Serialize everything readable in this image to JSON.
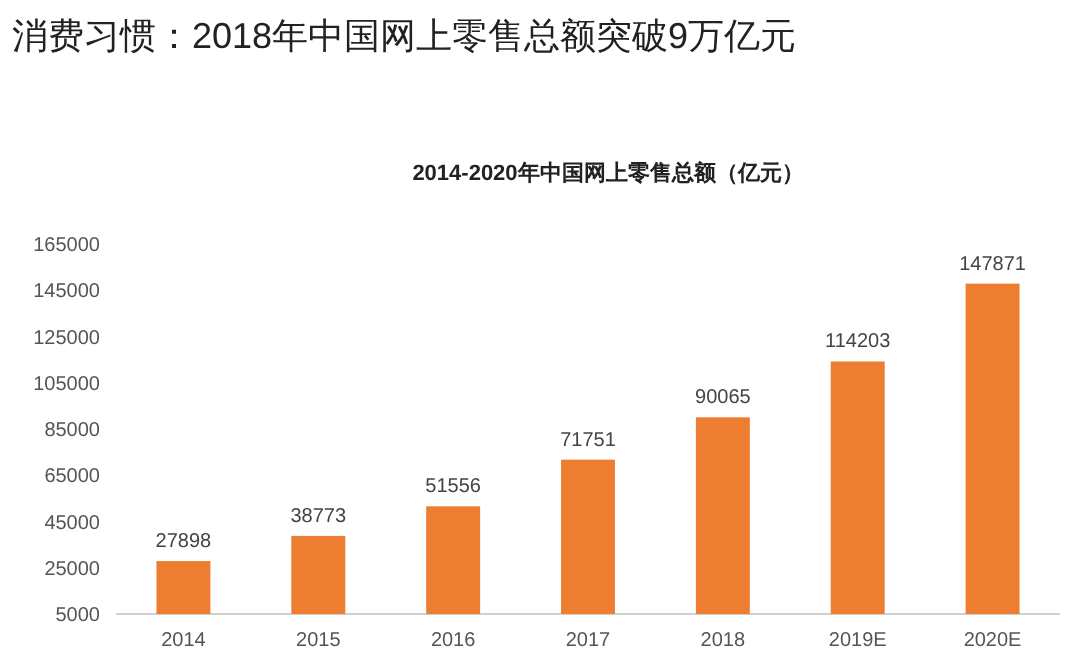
{
  "chart_data": {
    "type": "bar",
    "title": "消费习惯：2018年中国网上零售总额突破9万亿元",
    "subtitle": "2014-2020年中国网上零售总额（亿元）",
    "categories": [
      "2014",
      "2015",
      "2016",
      "2017",
      "2018",
      "2019E",
      "2020E"
    ],
    "values": [
      27898,
      38773,
      51556,
      71751,
      90065,
      114203,
      147871
    ],
    "color": "#ed7d31",
    "ylim": [
      5000,
      165000
    ],
    "yticks": [
      5000,
      25000,
      45000,
      65000,
      85000,
      105000,
      125000,
      145000,
      165000
    ],
    "data_labels": true
  }
}
